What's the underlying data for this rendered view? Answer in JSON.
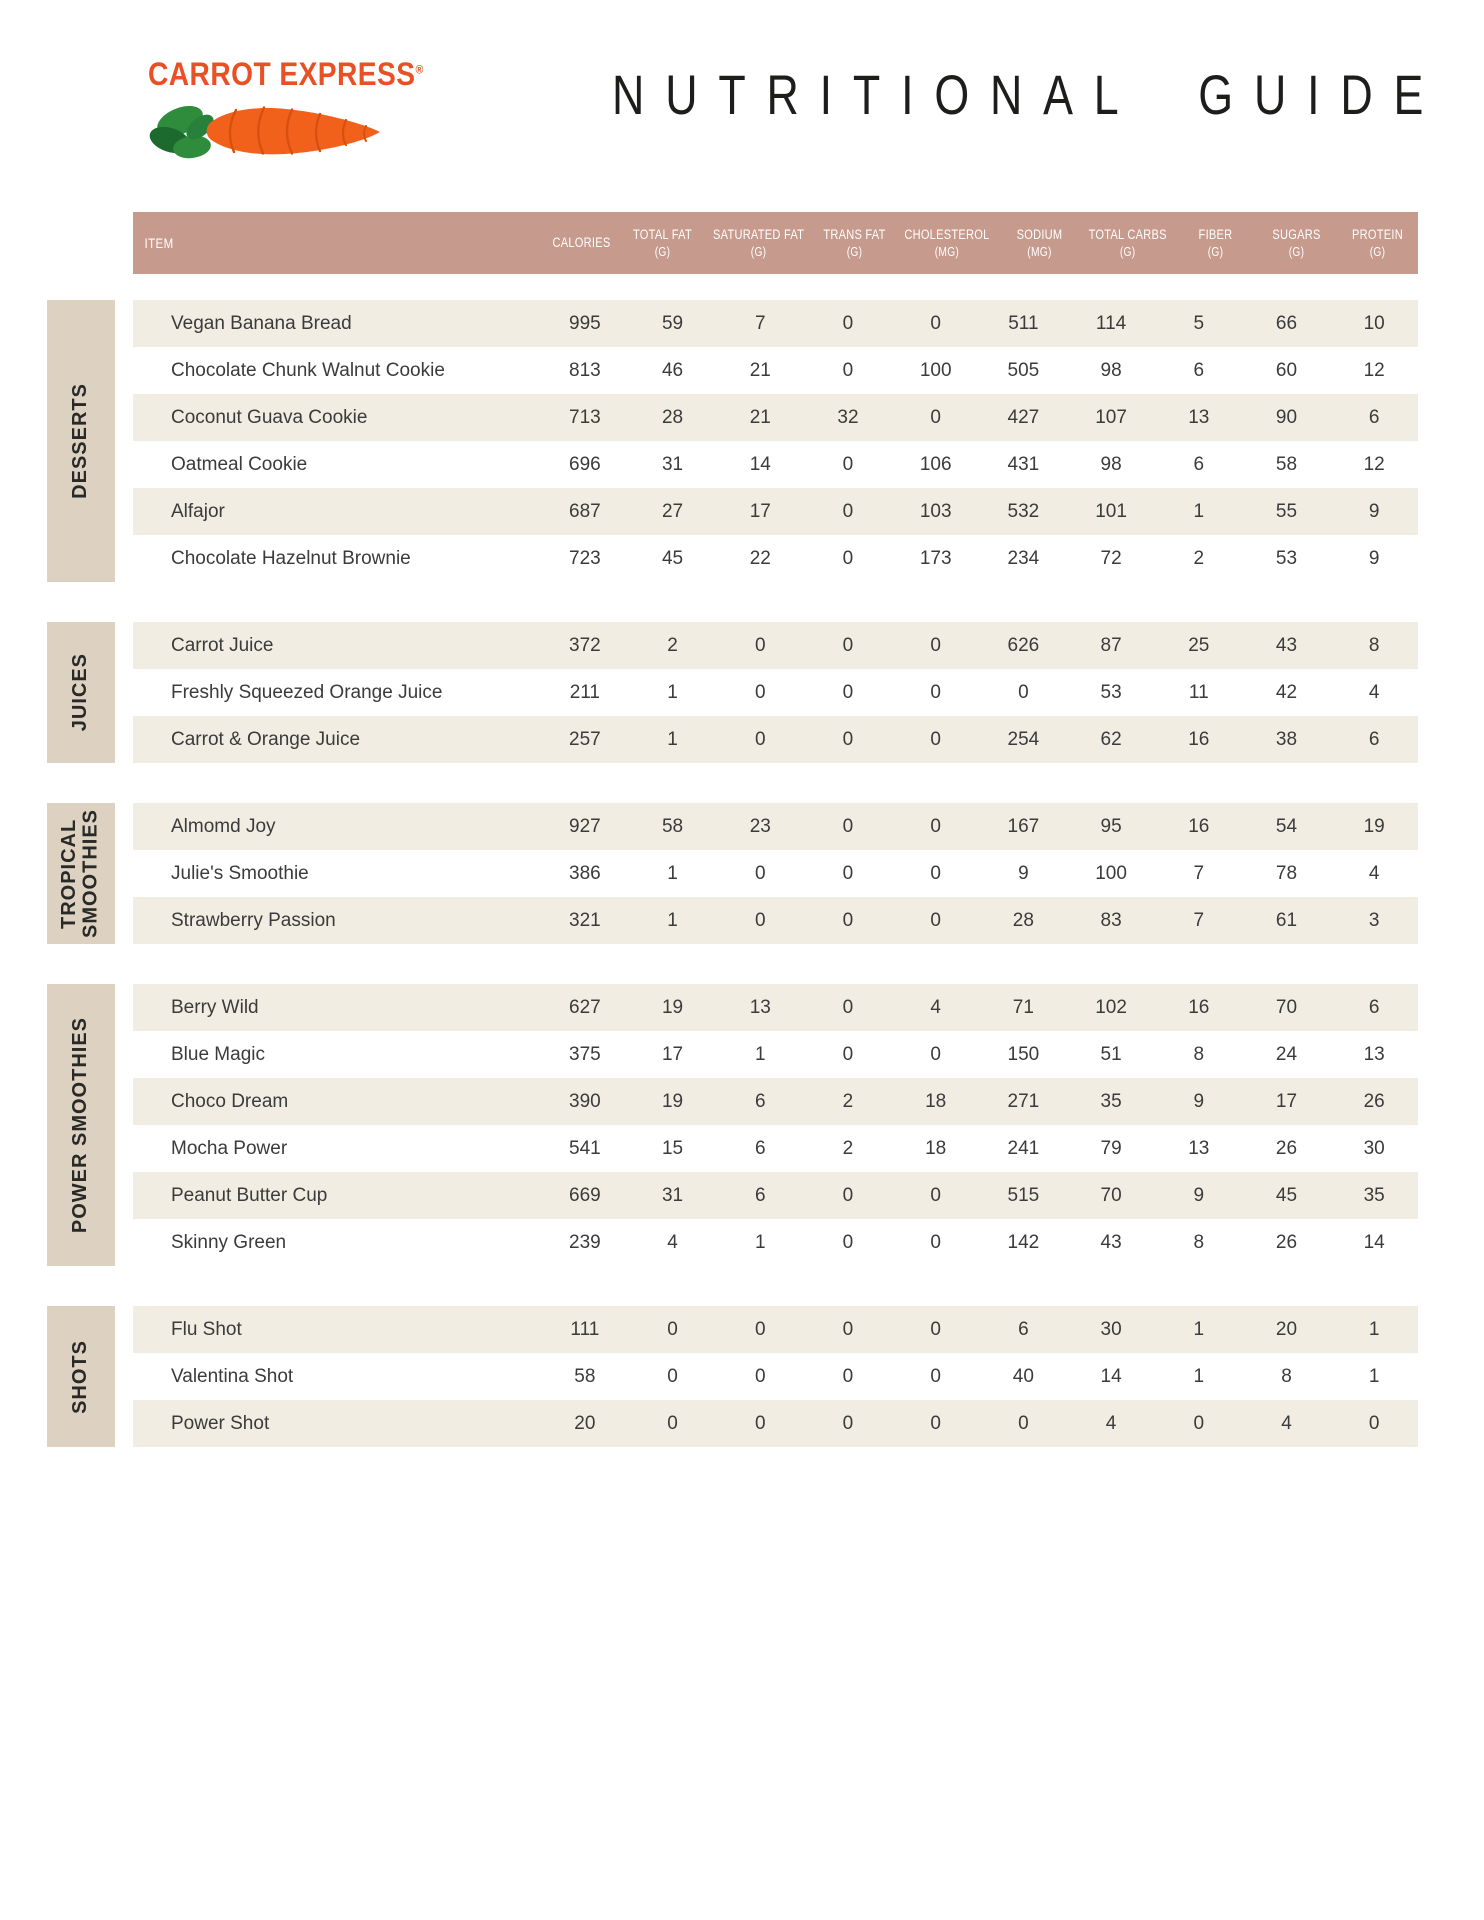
{
  "brand": {
    "name": "CARROT EXPRESS",
    "trademark": "®"
  },
  "title": "NUTRITIONAL GUIDE",
  "icons": {
    "logo_carrot": "carrot-illustration"
  },
  "colors": {
    "header_bar": "#c69a8d",
    "row_alt": "#f2ede2",
    "section_tab": "#ddd2c1",
    "brand_orange": "#e85126",
    "title_black": "#1d1d1b"
  },
  "table": {
    "item_header": "ITEM",
    "columns": [
      {
        "label": "CALORIES",
        "unit": ""
      },
      {
        "label": "TOTAL FAT",
        "unit": "(G)"
      },
      {
        "label": "SATURATED FAT",
        "unit": "(G)"
      },
      {
        "label": "TRANS FAT",
        "unit": "(G)"
      },
      {
        "label": "CHOLESTEROL",
        "unit": "(MG)"
      },
      {
        "label": "SODIUM",
        "unit": "(MG)"
      },
      {
        "label": "TOTAL CARBS",
        "unit": "(G)"
      },
      {
        "label": "FIBER",
        "unit": "(G)"
      },
      {
        "label": "SUGARS",
        "unit": "(G)"
      },
      {
        "label": "PROTEIN",
        "unit": "(G)"
      }
    ],
    "sections": [
      {
        "label": "DESSERTS",
        "rows": [
          {
            "item": "Vegan Banana Bread",
            "values": [
              995,
              59,
              7,
              0,
              0,
              511,
              114,
              5,
              66,
              10
            ]
          },
          {
            "item": "Chocolate Chunk Walnut Cookie",
            "values": [
              813,
              46,
              21,
              0,
              100,
              505,
              98,
              6,
              60,
              12
            ]
          },
          {
            "item": "Coconut Guava Cookie",
            "values": [
              713,
              28,
              21,
              32,
              0,
              427,
              107,
              13,
              90,
              6
            ]
          },
          {
            "item": "Oatmeal Cookie",
            "values": [
              696,
              31,
              14,
              0,
              106,
              431,
              98,
              6,
              58,
              12
            ]
          },
          {
            "item": "Alfajor",
            "values": [
              687,
              27,
              17,
              0,
              103,
              532,
              101,
              1,
              55,
              9
            ]
          },
          {
            "item": "Chocolate Hazelnut Brownie",
            "values": [
              723,
              45,
              22,
              0,
              173,
              234,
              72,
              2,
              53,
              9
            ]
          }
        ]
      },
      {
        "label": "JUICES",
        "rows": [
          {
            "item": "Carrot Juice",
            "values": [
              372,
              2,
              0,
              0,
              0,
              626,
              87,
              25,
              43,
              8
            ]
          },
          {
            "item": "Freshly Squeezed Orange Juice",
            "values": [
              211,
              1,
              0,
              0,
              0,
              0,
              53,
              11,
              42,
              4
            ]
          },
          {
            "item": "Carrot & Orange Juice",
            "values": [
              257,
              1,
              0,
              0,
              0,
              254,
              62,
              16,
              38,
              6
            ]
          }
        ]
      },
      {
        "label": "TROPICAL\nSMOOTHIES",
        "rows": [
          {
            "item": "Almomd Joy",
            "values": [
              927,
              58,
              23,
              0,
              0,
              167,
              95,
              16,
              54,
              19
            ]
          },
          {
            "item": "Julie's Smoothie",
            "values": [
              386,
              1,
              0,
              0,
              0,
              9,
              100,
              7,
              78,
              4
            ]
          },
          {
            "item": "Strawberry Passion",
            "values": [
              321,
              1,
              0,
              0,
              0,
              28,
              83,
              7,
              61,
              3
            ]
          }
        ]
      },
      {
        "label": "POWER SMOOTHIES",
        "rows": [
          {
            "item": "Berry Wild",
            "values": [
              627,
              19,
              13,
              0,
              4,
              71,
              102,
              16,
              70,
              6
            ]
          },
          {
            "item": "Blue Magic",
            "values": [
              375,
              17,
              1,
              0,
              0,
              150,
              51,
              8,
              24,
              13
            ]
          },
          {
            "item": "Choco Dream",
            "values": [
              390,
              19,
              6,
              2,
              18,
              271,
              35,
              9,
              17,
              26
            ]
          },
          {
            "item": "Mocha Power",
            "values": [
              541,
              15,
              6,
              2,
              18,
              241,
              79,
              13,
              26,
              30
            ]
          },
          {
            "item": "Peanut Butter Cup",
            "values": [
              669,
              31,
              6,
              0,
              0,
              515,
              70,
              9,
              45,
              35
            ]
          },
          {
            "item": "Skinny Green",
            "values": [
              239,
              4,
              1,
              0,
              0,
              142,
              43,
              8,
              26,
              14
            ]
          }
        ]
      },
      {
        "label": "SHOTS",
        "rows": [
          {
            "item": "Flu Shot",
            "values": [
              111,
              0,
              0,
              0,
              0,
              6,
              30,
              1,
              20,
              1
            ]
          },
          {
            "item": "Valentina Shot",
            "values": [
              58,
              0,
              0,
              0,
              0,
              40,
              14,
              1,
              8,
              1
            ]
          },
          {
            "item": "Power Shot",
            "values": [
              20,
              0,
              0,
              0,
              0,
              0,
              4,
              0,
              4,
              0
            ]
          }
        ]
      }
    ]
  }
}
